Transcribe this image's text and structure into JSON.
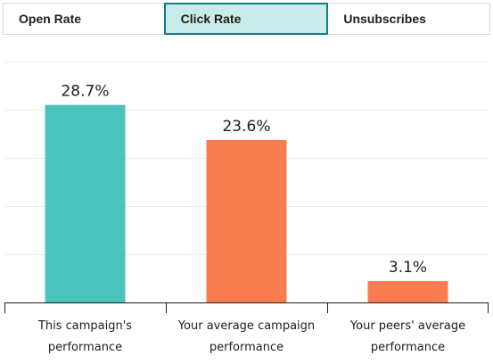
{
  "tabs": [
    {
      "label": "Open Rate",
      "active": false
    },
    {
      "label": "Click Rate",
      "active": true
    },
    {
      "label": "Unsubscribes",
      "active": false
    }
  ],
  "colors": {
    "current_campaign_bar": "#4ac4bd",
    "comparison_bar": "#fa7d52",
    "active_tab_bg": "#c9ecea",
    "active_tab_border": "#0f7f7f"
  },
  "chart_data": {
    "type": "bar",
    "categories": [
      [
        "This campaign's",
        "performance"
      ],
      [
        "Your average campaign",
        "performance"
      ],
      [
        "Your peers' average",
        "performance"
      ]
    ],
    "values": [
      28.7,
      23.6,
      3.1
    ],
    "value_labels": [
      "28.7%",
      "23.6%",
      "3.1%"
    ],
    "unit": "%",
    "ylim": [
      0,
      35
    ],
    "grid": true,
    "legend": "none"
  }
}
